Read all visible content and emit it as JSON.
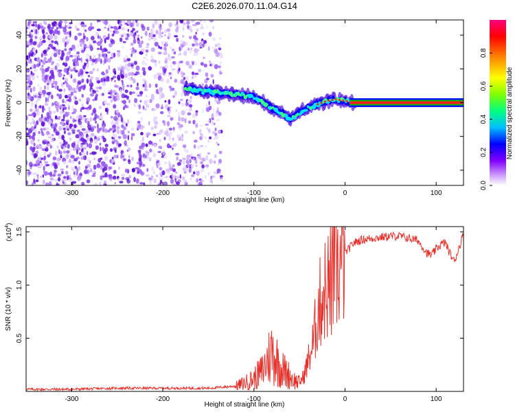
{
  "title": "C2E6.2026.070.11.04.G14",
  "colors": {
    "noise": "#6a1fe0",
    "snr_line": "#e8302a",
    "zero_line": "#00a000",
    "colorbar": [
      "#ff00ff",
      "#8000ff",
      "#0000ff",
      "#00ffff",
      "#00ff00",
      "#ffff00",
      "#ff8000",
      "#ff0000",
      "#ff0080"
    ]
  },
  "chart_data": [
    {
      "type": "heatmap",
      "name": "spectrogram",
      "xlabel": "Height of straight line (km)",
      "ylabel": "Frequency (Hz)",
      "xlim": [
        -350,
        130
      ],
      "ylim": [
        -49,
        49
      ],
      "xticks": [
        -300,
        -200,
        -100,
        0,
        100
      ],
      "xtick_labels": [
        "-300",
        "-200",
        "-100",
        "0",
        "100"
      ],
      "yticks": [
        -40,
        -20,
        0,
        20,
        40
      ],
      "ytick_labels": [
        "-40",
        "-20",
        "0",
        "20",
        "40"
      ],
      "noise_region_x": [
        -350,
        -135
      ],
      "trace": [
        {
          "x": -175,
          "y": 8
        },
        {
          "x": -160,
          "y": 7
        },
        {
          "x": -140,
          "y": 6
        },
        {
          "x": -120,
          "y": 5
        },
        {
          "x": -100,
          "y": 3
        },
        {
          "x": -90,
          "y": 0
        },
        {
          "x": -80,
          "y": -3
        },
        {
          "x": -70,
          "y": -6
        },
        {
          "x": -60,
          "y": -10
        },
        {
          "x": -50,
          "y": -6
        },
        {
          "x": -40,
          "y": -3
        },
        {
          "x": -30,
          "y": -1
        },
        {
          "x": -20,
          "y": 1
        },
        {
          "x": -10,
          "y": 2
        },
        {
          "x": 0,
          "y": 1
        },
        {
          "x": 10,
          "y": 0
        },
        {
          "x": 130,
          "y": 0
        }
      ],
      "colorbar": {
        "label": "Normalized spectral amplitude",
        "range": [
          0,
          1
        ],
        "ticks": [
          0.0,
          0.2,
          0.4,
          0.6,
          0.8
        ],
        "tick_labels": [
          "0.0",
          "0.2",
          "0.4",
          "0.6",
          "0.8"
        ]
      }
    },
    {
      "type": "line",
      "name": "snr",
      "xlabel": "Height of straight line (km)",
      "ylabel": "SNR (10 * v/v)",
      "scale_label": "(x10",
      "scale_exp": "4",
      "scale_close": ")",
      "xlim": [
        -350,
        130
      ],
      "ylim": [
        0,
        1.55
      ],
      "xticks": [
        -300,
        -200,
        -100,
        0,
        100
      ],
      "xtick_labels": [
        "-300",
        "-200",
        "-100",
        "0",
        "100"
      ],
      "yticks": [
        0.5,
        1.0,
        1.5
      ],
      "ytick_labels": [
        "0.5",
        "1.0",
        "1.5"
      ],
      "series": [
        {
          "name": "SNR",
          "x": [
            -350,
            -300,
            -250,
            -200,
            -150,
            -120,
            -110,
            -100,
            -90,
            -85,
            -80,
            -75,
            -70,
            -65,
            -60,
            -55,
            -50,
            -45,
            -40,
            -35,
            -30,
            -25,
            -20,
            -15,
            -10,
            -5,
            0,
            10,
            20,
            30,
            40,
            50,
            60,
            70,
            80,
            85,
            90,
            95,
            100,
            105,
            110,
            115,
            120,
            125,
            130
          ],
          "y": [
            0.02,
            0.02,
            0.03,
            0.03,
            0.03,
            0.05,
            0.08,
            0.12,
            0.2,
            0.3,
            0.38,
            0.3,
            0.22,
            0.18,
            0.14,
            0.1,
            0.08,
            0.15,
            0.3,
            0.45,
            0.75,
            0.9,
            1.0,
            1.05,
            1.12,
            1.18,
            1.3,
            1.4,
            1.43,
            1.44,
            1.45,
            1.46,
            1.46,
            1.44,
            1.42,
            1.36,
            1.3,
            1.28,
            1.34,
            1.38,
            1.4,
            1.3,
            1.22,
            1.35,
            1.48
          ]
        }
      ]
    }
  ]
}
